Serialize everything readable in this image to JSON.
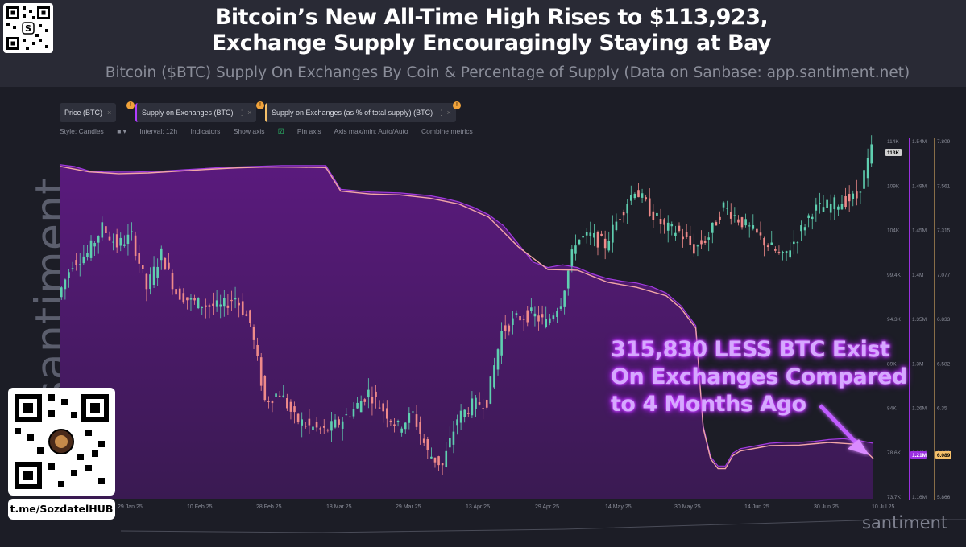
{
  "header": {
    "title_line1": "Bitcoin’s New All-Time High Rises to $113,923,",
    "title_line2": "Exchange Supply Encouragingly Staying at Bay",
    "subtitle": "Bitcoin ($BTC) Supply On Exchanges By Coin & Percentage of Supply (Data on Sanbase: app.santiment.net)"
  },
  "metric_tags": [
    {
      "label": "Price (BTC)",
      "color": "#ffffff"
    },
    {
      "label": "Supply on Exchanges (BTC)",
      "color": "#b03cff"
    },
    {
      "label": "Supply on Exchanges (as % of total supply) (BTC)",
      "color": "#f5c06a"
    }
  ],
  "toolbar": {
    "style": "Style: Candles",
    "interval": "Interval: 12h",
    "indicators": "Indicators",
    "show_axis": "Show axis",
    "pin_axis": "Pin axis",
    "axis_minmax": "Axis max/min: Auto/Auto",
    "combine": "Combine metrics"
  },
  "watermark": "santiment",
  "brand": "santiment",
  "telegram_handle": "t.me/SozdatelHUB",
  "annotation": {
    "line1": "315,830 LESS BTC Exist",
    "line2": "On Exchanges Compared",
    "line3": "to 4 Months Ago"
  },
  "chart_data": {
    "type": "line",
    "x_ticks": [
      "29 Jan 25",
      "10 Feb 25",
      "28 Feb 25",
      "18 Mar 25",
      "29 Mar 25",
      "13 Apr 25",
      "29 Apr 25",
      "14 May 25",
      "30 May 25",
      "14 Jun 25",
      "30 Jun 25",
      "10 Jul 25"
    ],
    "axes": {
      "price": {
        "ticks": [
          "114K",
          "109K",
          "104K",
          "99.4K",
          "94.3K",
          "89K",
          "84K",
          "78.6K",
          "73.7K"
        ],
        "highlight": "113K",
        "color": "#ffffff"
      },
      "supply": {
        "ticks": [
          "1.54M",
          "1.49M",
          "1.45M",
          "1.4M",
          "1.35M",
          "1.3M",
          "1.26M",
          "1.21M",
          "1.16M"
        ],
        "highlight": "1.21M",
        "color": "#b03cff"
      },
      "percent": {
        "ticks": [
          "7.809",
          "7.561",
          "7.315",
          "7.077",
          "6.833",
          "6.582",
          "6.35",
          "6.089",
          "5.866"
        ],
        "highlight": "6.089",
        "color": "#f5c06a"
      }
    },
    "series": [
      {
        "name": "Price (BTC)",
        "unit": "USD",
        "points": [
          [
            0,
            97000
          ],
          [
            2,
            101000
          ],
          [
            4,
            102000
          ],
          [
            6,
            105000
          ],
          [
            8,
            103000
          ],
          [
            10,
            104000
          ],
          [
            12,
            98000
          ],
          [
            14,
            102000
          ],
          [
            16,
            97500
          ],
          [
            18,
            96500
          ],
          [
            20,
            96000
          ],
          [
            22,
            95800
          ],
          [
            24,
            97000
          ],
          [
            26,
            94000
          ],
          [
            28,
            85000
          ],
          [
            30,
            86000
          ],
          [
            32,
            83000
          ],
          [
            34,
            82000
          ],
          [
            36,
            81500
          ],
          [
            38,
            82500
          ],
          [
            40,
            84000
          ],
          [
            42,
            86000
          ],
          [
            44,
            84000
          ],
          [
            46,
            82000
          ],
          [
            48,
            83500
          ],
          [
            50,
            79000
          ],
          [
            52,
            77500
          ],
          [
            54,
            83000
          ],
          [
            56,
            84500
          ],
          [
            58,
            85000
          ],
          [
            60,
            93000
          ],
          [
            62,
            94500
          ],
          [
            64,
            95000
          ],
          [
            66,
            94000
          ],
          [
            68,
            96500
          ],
          [
            70,
            103500
          ],
          [
            72,
            104000
          ],
          [
            74,
            103000
          ],
          [
            76,
            106500
          ],
          [
            78,
            109500
          ],
          [
            80,
            107000
          ],
          [
            82,
            105000
          ],
          [
            84,
            104500
          ],
          [
            86,
            102500
          ],
          [
            88,
            104000
          ],
          [
            90,
            107500
          ],
          [
            92,
            106000
          ],
          [
            94,
            104500
          ],
          [
            96,
            103000
          ],
          [
            98,
            101500
          ],
          [
            100,
            104000
          ],
          [
            102,
            107000
          ],
          [
            104,
            107500
          ],
          [
            106,
            108000
          ],
          [
            108,
            108500
          ],
          [
            110,
            114000
          ]
        ]
      },
      {
        "name": "Supply on Exchanges (BTC)",
        "unit": "BTC",
        "points": [
          [
            0,
            1527000
          ],
          [
            2,
            1525000
          ],
          [
            4,
            1520000
          ],
          [
            6,
            1519000
          ],
          [
            10,
            1519000
          ],
          [
            14,
            1520000
          ],
          [
            18,
            1522000
          ],
          [
            22,
            1524000
          ],
          [
            26,
            1525000
          ],
          [
            30,
            1526000
          ],
          [
            34,
            1526000
          ],
          [
            36,
            1526000
          ],
          [
            38,
            1500000
          ],
          [
            42,
            1497000
          ],
          [
            46,
            1496000
          ],
          [
            50,
            1493000
          ],
          [
            52,
            1490000
          ],
          [
            54,
            1486000
          ],
          [
            56,
            1480000
          ],
          [
            58,
            1472000
          ],
          [
            60,
            1460000
          ],
          [
            62,
            1440000
          ],
          [
            64,
            1420000
          ],
          [
            66,
            1414000
          ],
          [
            68,
            1417000
          ],
          [
            70,
            1414000
          ],
          [
            72,
            1407000
          ],
          [
            74,
            1402000
          ],
          [
            76,
            1399000
          ],
          [
            78,
            1397000
          ],
          [
            80,
            1393000
          ],
          [
            82,
            1386000
          ],
          [
            84,
            1372000
          ],
          [
            86,
            1350000
          ],
          [
            87,
            1240000
          ],
          [
            88,
            1206000
          ],
          [
            89,
            1196000
          ],
          [
            90,
            1196000
          ],
          [
            91,
            1210000
          ],
          [
            92,
            1215000
          ],
          [
            94,
            1218000
          ],
          [
            96,
            1221000
          ],
          [
            98,
            1222000
          ],
          [
            100,
            1222000
          ],
          [
            102,
            1223000
          ],
          [
            104,
            1225000
          ],
          [
            106,
            1226000
          ],
          [
            108,
            1224000
          ],
          [
            110,
            1221000
          ]
        ]
      },
      {
        "name": "Supply on Exchanges (as % of total supply) (BTC)",
        "unit": "%",
        "points": [
          [
            0,
            7.712
          ],
          [
            4,
            7.681
          ],
          [
            8,
            7.671
          ],
          [
            12,
            7.675
          ],
          [
            16,
            7.685
          ],
          [
            20,
            7.695
          ],
          [
            24,
            7.703
          ],
          [
            28,
            7.708
          ],
          [
            32,
            7.707
          ],
          [
            36,
            7.705
          ],
          [
            38,
            7.574
          ],
          [
            42,
            7.558
          ],
          [
            46,
            7.553
          ],
          [
            50,
            7.535
          ],
          [
            54,
            7.502
          ],
          [
            58,
            7.43
          ],
          [
            62,
            7.265
          ],
          [
            66,
            7.139
          ],
          [
            70,
            7.135
          ],
          [
            74,
            7.069
          ],
          [
            78,
            7.04
          ],
          [
            82,
            6.993
          ],
          [
            84,
            6.923
          ],
          [
            86,
            6.813
          ],
          [
            87,
            6.26
          ],
          [
            88,
            6.087
          ],
          [
            89,
            6.033
          ],
          [
            90,
            6.033
          ],
          [
            91,
            6.105
          ],
          [
            92,
            6.131
          ],
          [
            96,
            6.161
          ],
          [
            100,
            6.164
          ],
          [
            104,
            6.178
          ],
          [
            108,
            6.168
          ],
          [
            110,
            6.089
          ]
        ]
      }
    ],
    "grid": false,
    "legend_position": "top-left"
  }
}
